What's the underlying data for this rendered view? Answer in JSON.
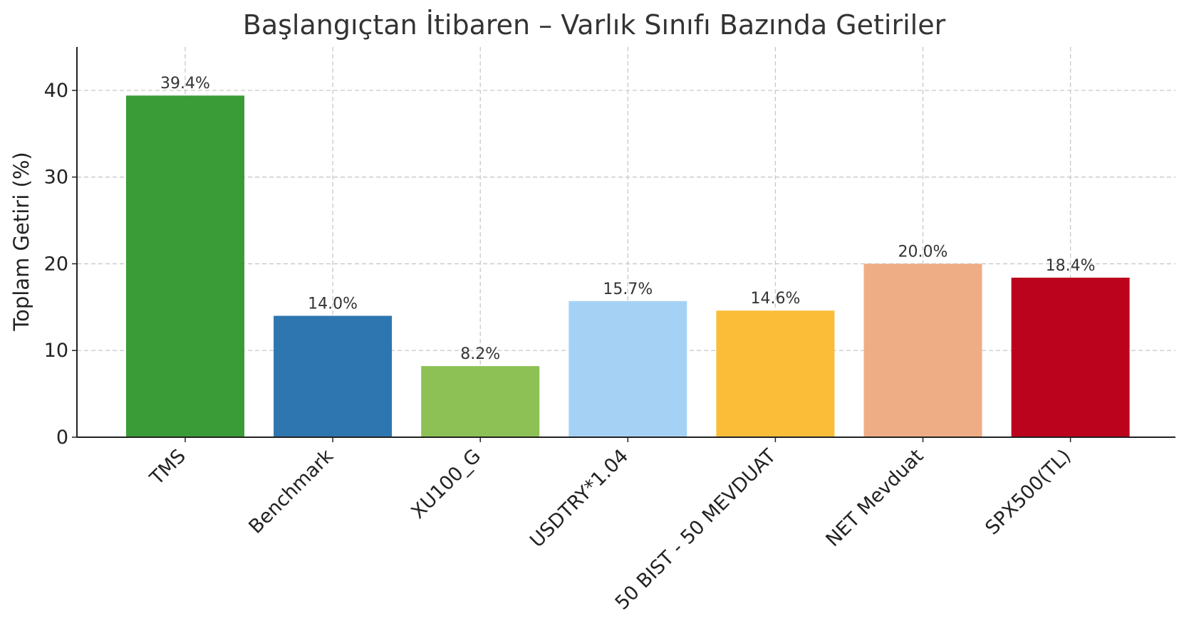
{
  "chart_data": {
    "type": "bar",
    "title": "Başlangıçtan İtibaren – Varlık Sınıfı Bazında Getiriler",
    "xlabel": "",
    "ylabel": "Toplam Getiri (%)",
    "ylim": [
      0,
      45
    ],
    "yticks": [
      "0",
      "10",
      "20",
      "30",
      "40"
    ],
    "grid": true,
    "categories": [
      "TMS",
      "Benchmark",
      "XU100_G",
      "USDTRY*1.04",
      "50 BIST - 50 MEVDUAT",
      "NET Mevduat",
      "SPX500(TL)"
    ],
    "values": [
      39.4,
      14.0,
      8.2,
      15.7,
      14.6,
      20.0,
      18.4
    ],
    "value_labels": [
      "39.4%",
      "14.0%",
      "8.2%",
      "15.7%",
      "14.6%",
      "20.0%",
      "18.4%"
    ],
    "colors": [
      "#3a9c37",
      "#2e76b0",
      "#8dc155",
      "#a5d2f4",
      "#fbbd38",
      "#efad86",
      "#bc031d"
    ]
  }
}
